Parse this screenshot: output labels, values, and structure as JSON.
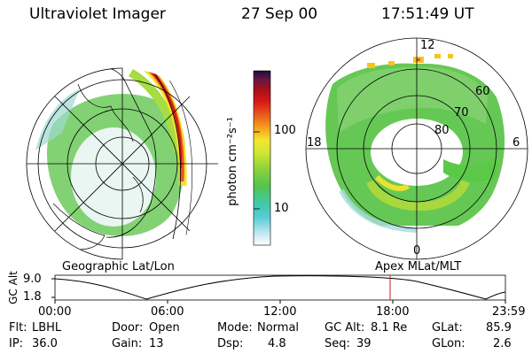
{
  "header": {
    "instrument": "Ultraviolet Imager",
    "date": "27 Sep 00",
    "time": "17:51:49 UT"
  },
  "colorbar": {
    "label": "photon cm⁻²s⁻¹",
    "tick_100": "100",
    "tick_10": "10",
    "colors": [
      "#ffffff",
      "#bfe8f0",
      "#55cdd8",
      "#41c8a8",
      "#54c44c",
      "#8fd23c",
      "#d0e632",
      "#f5e630",
      "#f7a41e",
      "#e8571c",
      "#d41616",
      "#a0101e",
      "#6a1648",
      "#140e3a"
    ]
  },
  "geo_panel": {
    "caption": "Geographic Lat/Lon"
  },
  "apex_panel": {
    "caption": "Apex MLat/MLT",
    "lat_labels": [
      "60",
      "70",
      "80"
    ],
    "mlt_labels": {
      "noon": "12",
      "dusk": "18",
      "dawn": "6",
      "midnight": "0"
    }
  },
  "altitude_plot": {
    "ylabel": "GC Alt",
    "y_ticks": [
      "9.0",
      "1.8"
    ],
    "x_ticks": [
      "00:00",
      "06:00",
      "12:00",
      "18:00",
      "23:59"
    ],
    "marker_color": "#c81e1e"
  },
  "status": {
    "flt_label": "Flt:",
    "flt_value": "LBHL",
    "ip_label": "IP:",
    "ip_value": "36.0",
    "door_label": "Door:",
    "door_value": "Open",
    "gain_label": "Gain:",
    "gain_value": "13",
    "mode_label": "Mode:",
    "mode_value": "Normal",
    "dsp_label": "Dsp:",
    "dsp_value": "4.8",
    "gcalt_label": "GC Alt:",
    "gcalt_value": "8.1 Re",
    "seq_label": "Seq:",
    "seq_value": "39",
    "glat_label": "GLat:",
    "glat_value": "85.9",
    "glon_label": "GLon:",
    "glon_value": "2.6"
  }
}
